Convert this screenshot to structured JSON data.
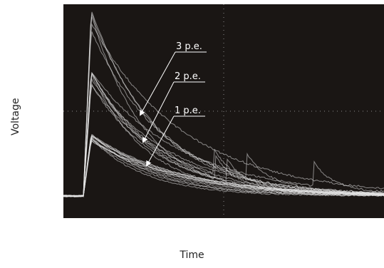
{
  "chart_data": {
    "type": "line",
    "title": "",
    "xlabel": "Time",
    "ylabel": "Voltage",
    "annotations": [
      "3 p.e.",
      "2 p.e.",
      "1 p.e."
    ],
    "series": [
      {
        "pe": 1,
        "amplitude": 1,
        "count": 12
      },
      {
        "pe": 2,
        "amplitude": 2,
        "count": 8
      },
      {
        "pe": 3,
        "amplitude": 3,
        "count": 5
      }
    ],
    "colors": {
      "background": "#1a1614",
      "trace": "#e6e6e6",
      "grid": "#8a8a8a"
    }
  }
}
